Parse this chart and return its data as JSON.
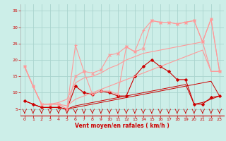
{
  "xlabel": "Vent moyen/en rafales ( km/h )",
  "xlim": [
    -0.5,
    23.5
  ],
  "ylim": [
    3,
    37
  ],
  "yticks": [
    5,
    10,
    15,
    20,
    25,
    30,
    35
  ],
  "xticks": [
    0,
    1,
    2,
    3,
    4,
    5,
    6,
    7,
    8,
    9,
    10,
    11,
    12,
    13,
    14,
    15,
    16,
    17,
    18,
    19,
    20,
    21,
    22,
    23
  ],
  "bg_color": "#cceee8",
  "grid_color": "#aad4ce",
  "series": [
    {
      "x": [
        0,
        1,
        2,
        3,
        4,
        5,
        6,
        7,
        8,
        9,
        10,
        11,
        12,
        13,
        14,
        15,
        16,
        17,
        18,
        19,
        20,
        21,
        22,
        23
      ],
      "y": [
        7.5,
        6.5,
        5.5,
        5.5,
        5.5,
        5.0,
        12.0,
        10.0,
        9.5,
        10.5,
        10.0,
        9.0,
        9.0,
        15.0,
        18.0,
        20.0,
        18.0,
        16.5,
        14.0,
        14.0,
        6.5,
        6.5,
        8.5,
        9.0
      ],
      "color": "#cc0000",
      "marker": "D",
      "lw": 0.8,
      "ms": 2.0
    },
    {
      "x": [
        0,
        1,
        2,
        3,
        4,
        5,
        6,
        7,
        8,
        9,
        10,
        11,
        12,
        13,
        14,
        15,
        16,
        17,
        18,
        19,
        20,
        21,
        22,
        23
      ],
      "y": [
        7.5,
        6.5,
        5.5,
        5.5,
        5.5,
        5.0,
        5.5,
        6.0,
        6.5,
        7.0,
        7.5,
        8.0,
        8.5,
        9.0,
        9.5,
        10.0,
        10.5,
        11.0,
        11.5,
        12.0,
        12.5,
        13.0,
        13.5,
        9.0
      ],
      "color": "#cc0000",
      "marker": null,
      "lw": 0.7,
      "ms": 0
    },
    {
      "x": [
        0,
        1,
        2,
        3,
        4,
        5,
        6,
        7,
        8,
        9,
        10,
        11,
        12,
        13,
        14,
        15,
        16,
        17,
        18,
        19,
        20,
        21,
        22,
        23
      ],
      "y": [
        7.5,
        6.5,
        5.5,
        5.5,
        5.5,
        5.0,
        6.0,
        6.5,
        7.0,
        7.5,
        8.0,
        8.5,
        9.0,
        9.5,
        10.0,
        10.5,
        11.0,
        11.5,
        12.0,
        12.5,
        6.5,
        7.0,
        8.0,
        9.0
      ],
      "color": "#cc0000",
      "marker": null,
      "lw": 0.7,
      "ms": 0
    },
    {
      "x": [
        0,
        1,
        2,
        3,
        4,
        5,
        6,
        7,
        8,
        9,
        10,
        11,
        12,
        13,
        14,
        15,
        16,
        17,
        18,
        19,
        20,
        21,
        22,
        23
      ],
      "y": [
        18.0,
        12.0,
        6.5,
        6.5,
        6.5,
        5.0,
        24.5,
        16.5,
        9.5,
        10.5,
        10.5,
        9.5,
        24.0,
        22.5,
        29.0,
        32.0,
        31.5,
        31.5,
        31.0,
        31.5,
        32.0,
        25.5,
        32.5,
        16.5
      ],
      "color": "#ff9999",
      "marker": "+",
      "lw": 0.8,
      "ms": 3.5
    },
    {
      "x": [
        0,
        1,
        2,
        3,
        4,
        5,
        6,
        7,
        8,
        9,
        10,
        11,
        12,
        13,
        14,
        15,
        16,
        17,
        18,
        19,
        20,
        21,
        22,
        23
      ],
      "y": [
        18.0,
        12.0,
        6.5,
        6.5,
        6.5,
        5.0,
        15.0,
        16.5,
        16.0,
        17.0,
        21.5,
        22.0,
        24.0,
        22.5,
        23.5,
        32.0,
        31.5,
        31.5,
        31.0,
        31.5,
        32.0,
        25.5,
        32.5,
        16.5
      ],
      "color": "#ff9999",
      "marker": "x",
      "lw": 0.8,
      "ms": 3.0
    },
    {
      "x": [
        0,
        1,
        2,
        3,
        4,
        5,
        6,
        7,
        8,
        9,
        10,
        11,
        12,
        13,
        14,
        15,
        16,
        17,
        18,
        19,
        20,
        21,
        22,
        23
      ],
      "y": [
        18.0,
        12.0,
        6.5,
        6.5,
        7.0,
        8.0,
        13.0,
        14.5,
        15.0,
        16.0,
        17.5,
        18.5,
        20.0,
        21.0,
        22.0,
        22.5,
        23.0,
        23.5,
        24.0,
        24.5,
        25.0,
        25.5,
        16.5,
        16.5
      ],
      "color": "#ff9999",
      "marker": null,
      "lw": 0.8,
      "ms": 0
    },
    {
      "x": [
        0,
        1,
        2,
        3,
        4,
        5,
        6,
        7,
        8,
        9,
        10,
        11,
        12,
        13,
        14,
        15,
        16,
        17,
        18,
        19,
        20,
        21,
        22,
        23
      ],
      "y": [
        18.0,
        12.0,
        6.5,
        6.5,
        6.5,
        6.0,
        8.0,
        9.0,
        10.0,
        11.0,
        12.0,
        13.0,
        14.0,
        15.0,
        16.0,
        17.0,
        18.0,
        19.0,
        20.0,
        21.0,
        22.0,
        23.0,
        16.5,
        16.5
      ],
      "color": "#ff9999",
      "marker": null,
      "lw": 0.8,
      "ms": 0
    }
  ]
}
